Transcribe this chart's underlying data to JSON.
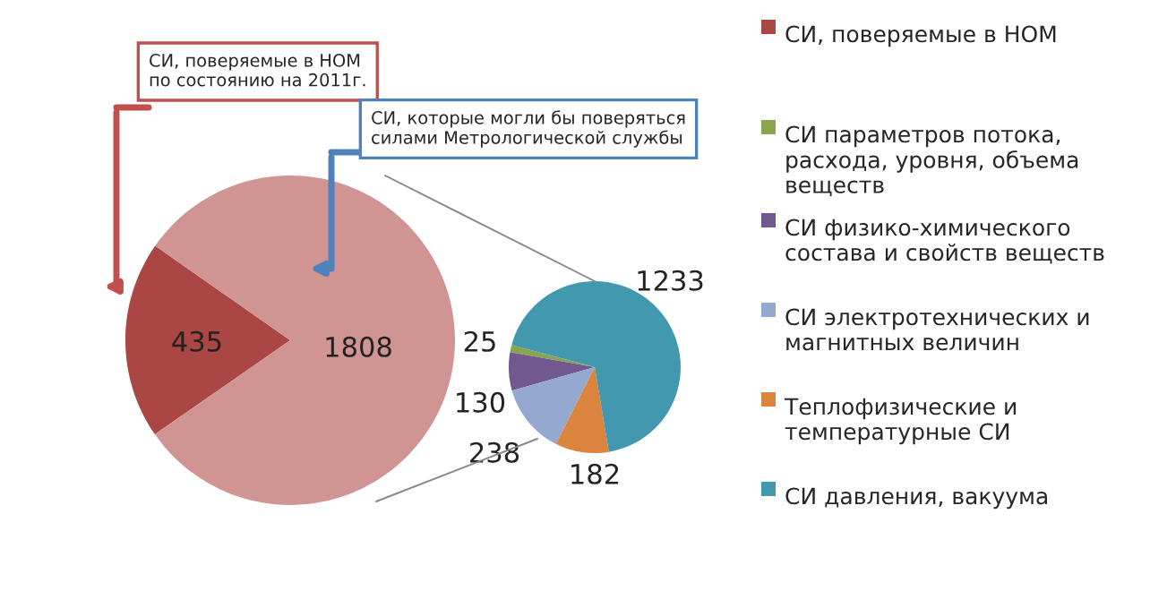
{
  "chart_data": [
    {
      "type": "pie",
      "categories": [
        "СИ, поверяемые в НОМ",
        null
      ],
      "values": [
        435,
        1808
      ],
      "colors": [
        "#aa4643",
        "#d09492"
      ],
      "data_labels": true,
      "legend": "right",
      "annotations": [
        "СИ, поверяемые в НОМ\nпо состоянию на 2011г.",
        "СИ, которые могли бы поверяться\nсилами Метрологической службы"
      ]
    },
    {
      "type": "pie",
      "categories": [
        "СИ параметров потока, расхода, уровня, объема веществ",
        "СИ физико-химического состава и свойств веществ",
        "СИ электротехнических и магнитных величин",
        "Теплофизические и температурные СИ",
        "СИ давления, вакуума"
      ],
      "values": [
        25,
        130,
        238,
        182,
        1233
      ],
      "colors": [
        "#89a54e",
        "#71588f",
        "#93a9cf",
        "#db843d",
        "#4198af"
      ],
      "data_labels": true,
      "legend": "right"
    }
  ]
}
